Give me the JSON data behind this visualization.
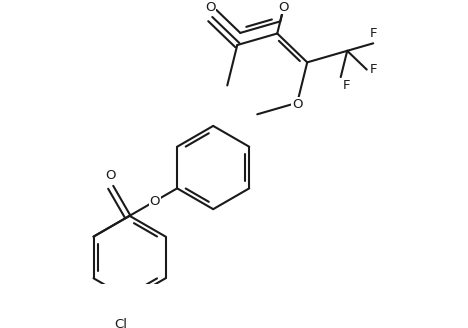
{
  "background": "#ffffff",
  "line_color": "#1a1a1a",
  "lw": 1.5,
  "figsize": [
    4.68,
    3.28
  ],
  "dpi": 100,
  "bl": 0.33,
  "font_size": 9.5,
  "xlim": [
    -3.8,
    3.8
  ],
  "ylim": [
    -2.8,
    3.8
  ]
}
